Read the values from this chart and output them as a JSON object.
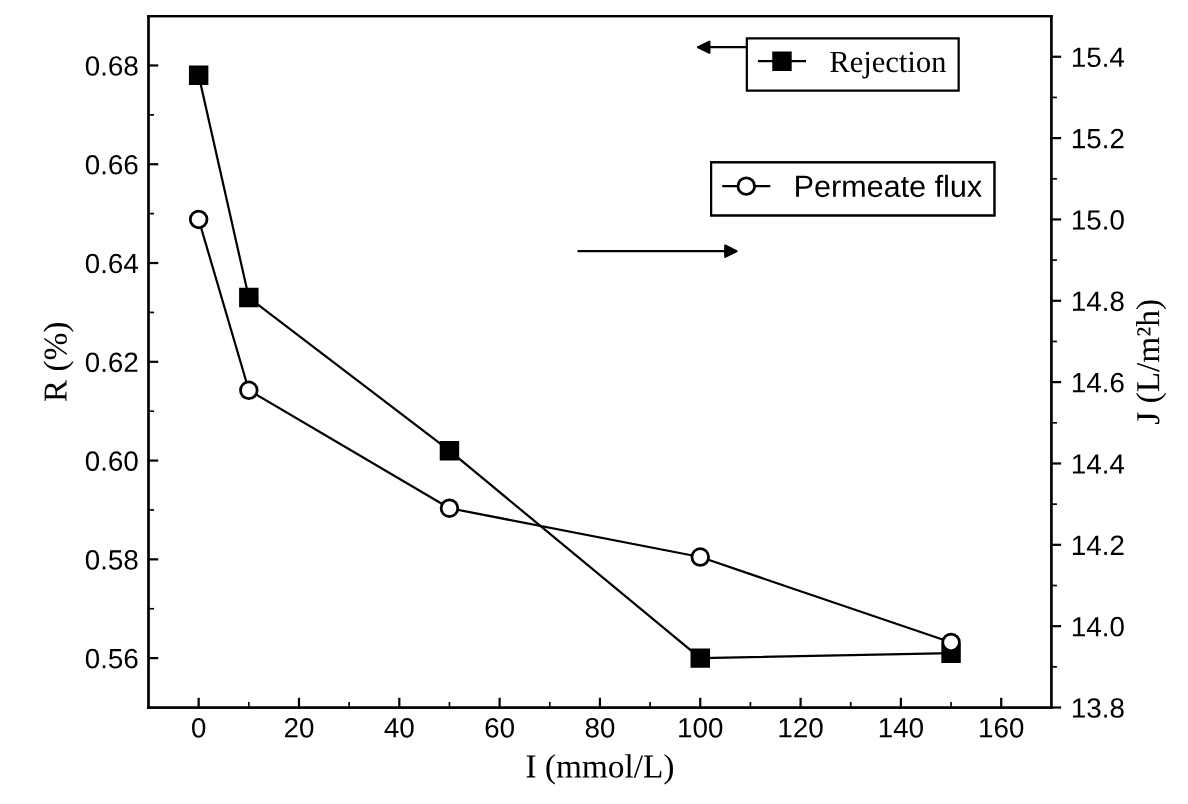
{
  "chart_data": {
    "type": "line",
    "xlabel": "I (mmol/L)",
    "ylabel": "R (%)",
    "y2label": "J (L/m²h)",
    "x": [
      0,
      10,
      50,
      100,
      150
    ],
    "series": [
      {
        "name": "Rejection",
        "color": "#000000",
        "marker": "square",
        "values": [
          0.678,
          0.633,
          0.602,
          0.56,
          0.561
        ]
      },
      {
        "name": "Permeate flux",
        "color": "#000000",
        "marker": "circle",
        "axis": "y2",
        "values": [
          15.0,
          14.58,
          14.29,
          14.17,
          13.96
        ]
      }
    ],
    "xlim": [
      -10,
      170
    ],
    "xticks": [
      0,
      20,
      40,
      60,
      80,
      100,
      120,
      140,
      160
    ],
    "ylim": [
      0.55,
      0.69
    ],
    "yticks": [
      0.56,
      0.58,
      {
        "value": 0.6,
        "label": "0.60"
      },
      0.62,
      0.64,
      0.66,
      0.68
    ],
    "y2lim": [
      13.8,
      15.5
    ],
    "y2ticks": [
      13.8,
      {
        "value": 14,
        "label": "14.0"
      },
      14.2,
      14.4,
      14.6,
      14.8,
      {
        "value": 15,
        "label": "15.0"
      },
      15.2,
      15.4
    ],
    "legend": "top right",
    "grid": false,
    "line_style": "solid"
  }
}
